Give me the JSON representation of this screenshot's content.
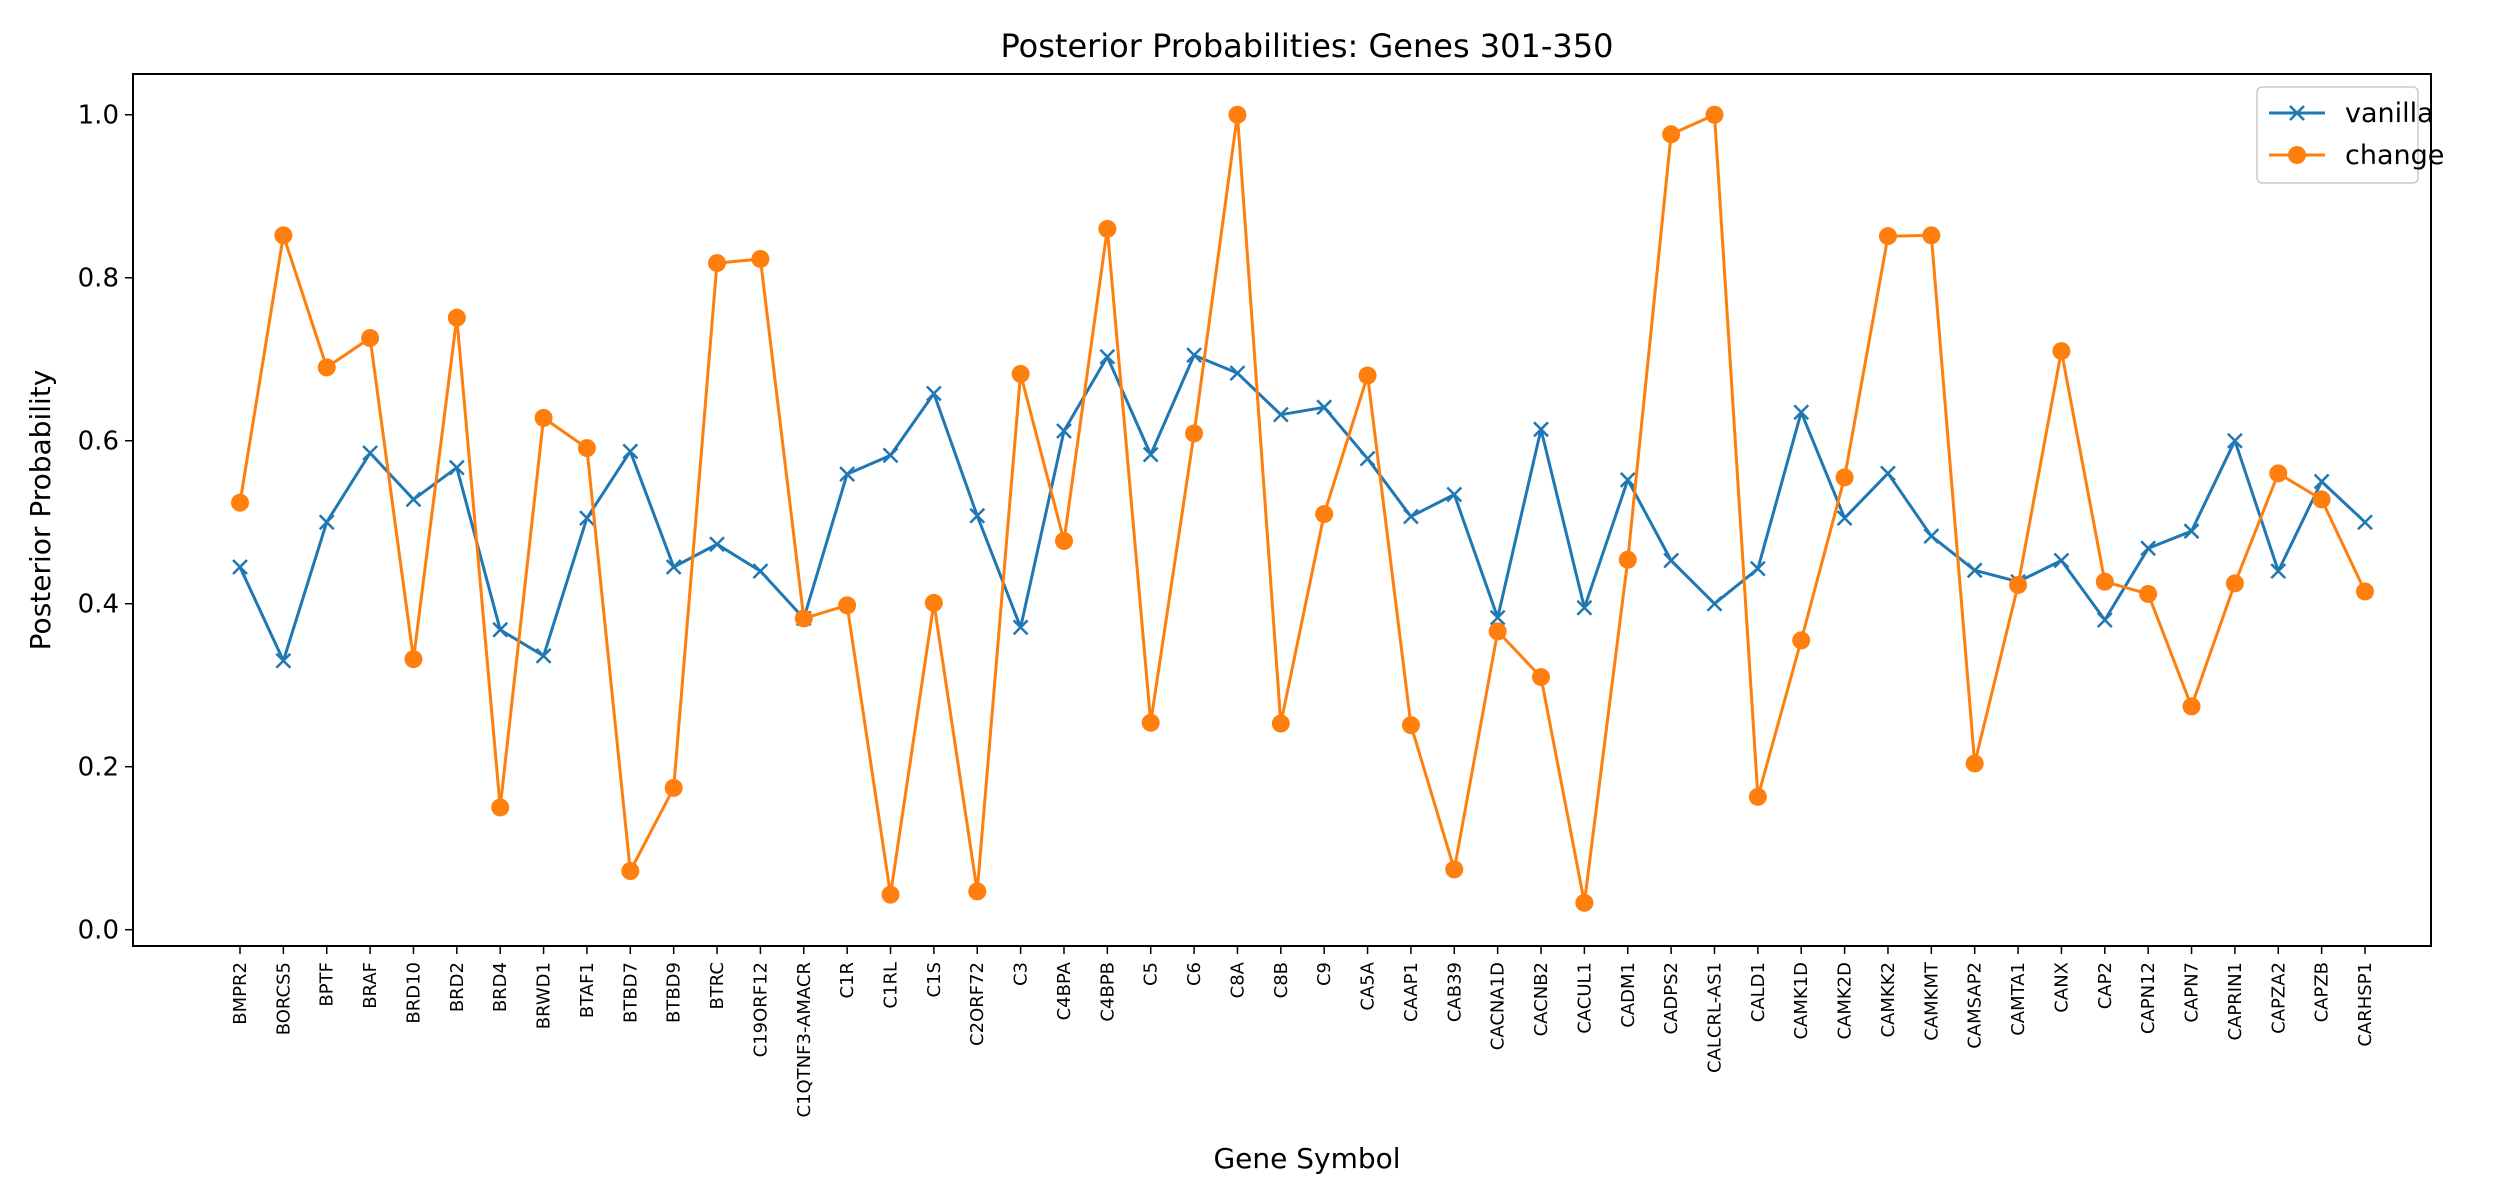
{
  "chart_data": {
    "type": "line",
    "title": "Posterior Probabilities: Genes 301-350",
    "xlabel": "Gene Symbol",
    "ylabel": "Posterior Probability",
    "ylim": [
      -0.02,
      1.05
    ],
    "yticks": [
      "0.0",
      "0.2",
      "0.4",
      "0.6",
      "0.8",
      "1.0"
    ],
    "grid": false,
    "legend_position": "top-right",
    "categories": [
      "BMPR2",
      "BORCS5",
      "BPTF",
      "BRAF",
      "BRD10",
      "BRD2",
      "BRD4",
      "BRWD1",
      "BTAF1",
      "BTBD7",
      "BTBD9",
      "BTRC",
      "C19ORF12",
      "C1QTNF3-AMACR",
      "C1R",
      "C1RL",
      "C1S",
      "C2ORF72",
      "C3",
      "C4BPA",
      "C4BPB",
      "C5",
      "C6",
      "C8A",
      "C8B",
      "C9",
      "CA5A",
      "CAAP1",
      "CAB39",
      "CACNA1D",
      "CACNB2",
      "CACUL1",
      "CADM1",
      "CADPS2",
      "CALCRL-AS1",
      "CALD1",
      "CAMK1D",
      "CAMK2D",
      "CAMKK2",
      "CAMKMT",
      "CAMSAP2",
      "CAMTA1",
      "CANX",
      "CAP2",
      "CAPN12",
      "CAPN7",
      "CAPRIN1",
      "CAPZA2",
      "CAPZB",
      "CARHSP1"
    ],
    "series": [
      {
        "name": "vanilla",
        "color": "#1f77b4",
        "marker": "x",
        "values": [
          0.445,
          0.33,
          0.5,
          0.585,
          0.528,
          0.567,
          0.368,
          0.336,
          0.505,
          0.587,
          0.445,
          0.473,
          0.44,
          0.382,
          0.559,
          0.582,
          0.658,
          0.508,
          0.371,
          0.612,
          0.703,
          0.583,
          0.705,
          0.683,
          0.632,
          0.641,
          0.578,
          0.507,
          0.534,
          0.383,
          0.614,
          0.395,
          0.552,
          0.453,
          0.4,
          0.443,
          0.635,
          0.505,
          0.56,
          0.483,
          0.441,
          0.427,
          0.453,
          0.38,
          0.468,
          0.489,
          0.6,
          0.44,
          0.55,
          0.5
        ]
      },
      {
        "name": "change",
        "color": "#ff7f0e",
        "marker": "o",
        "values": [
          0.524,
          0.852,
          0.69,
          0.726,
          0.332,
          0.751,
          0.15,
          0.628,
          0.591,
          0.072,
          0.174,
          0.818,
          0.823,
          0.382,
          0.398,
          0.043,
          0.401,
          0.047,
          0.682,
          0.477,
          0.86,
          0.254,
          0.609,
          1.0,
          0.253,
          0.51,
          0.68,
          0.251,
          0.074,
          0.366,
          0.31,
          0.033,
          0.454,
          0.976,
          1.0,
          0.163,
          0.355,
          0.555,
          0.851,
          0.852,
          0.204,
          0.423,
          0.71,
          0.427,
          0.412,
          0.274,
          0.425,
          0.56,
          0.528,
          0.415
        ]
      }
    ]
  }
}
